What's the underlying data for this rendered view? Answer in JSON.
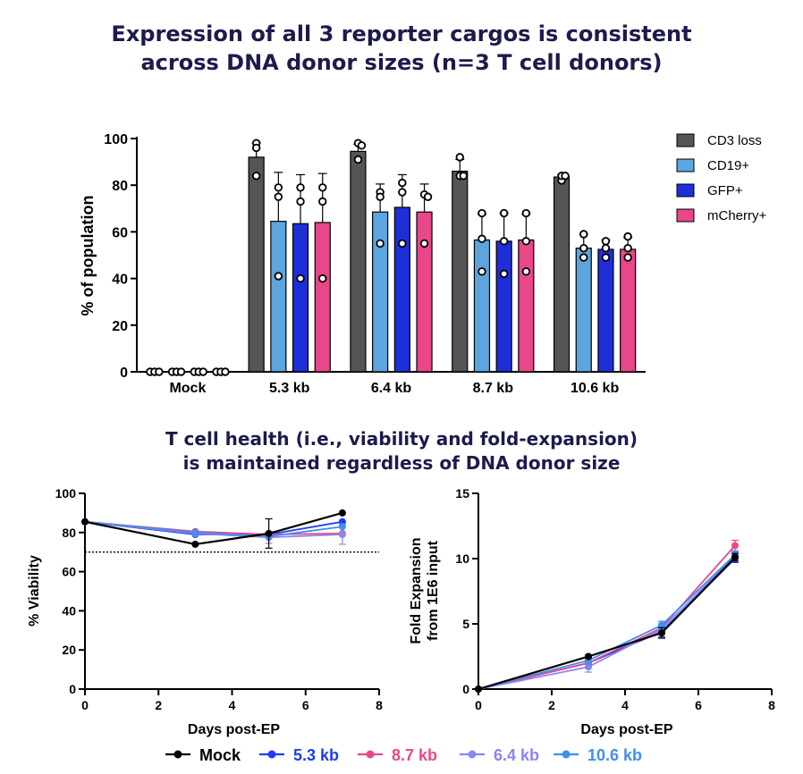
{
  "titles": {
    "top": [
      "Expression of all 3 reporter cargos is consistent",
      "across DNA donor sizes (n=3 T cell donors)"
    ],
    "bottom": [
      "T cell health (i.e., viability and fold-expansion)",
      "is maintained regardless of DNA donor size"
    ]
  },
  "chart_data": [
    {
      "type": "bar",
      "ylabel": "% of population",
      "ylim": [
        0,
        100
      ],
      "yticks": [
        0,
        20,
        40,
        60,
        80,
        100
      ],
      "categories": [
        "Mock",
        "5.3 kb",
        "6.4 kb",
        "8.7 kb",
        "10.6 kb"
      ],
      "legend_position": "right",
      "series": [
        {
          "name": "CD3 loss",
          "color": "#555555",
          "values": [
            0,
            92,
            94.5,
            86,
            83.5
          ],
          "error": [
            0,
            6,
            3,
            5,
            1
          ],
          "points": [
            [
              0,
              0,
              0
            ],
            [
              98,
              96,
              84
            ],
            [
              98,
              97,
              91
            ],
            [
              92,
              84,
              84
            ],
            [
              82,
              84,
              84
            ]
          ]
        },
        {
          "name": "CD19+",
          "color": "#5ca5df",
          "values": [
            0,
            64.5,
            68.5,
            56.5,
            53
          ],
          "error": [
            0,
            21,
            12,
            11,
            6
          ],
          "points": [
            [
              0,
              0,
              0
            ],
            [
              79,
              75,
              41
            ],
            [
              77,
              75,
              55
            ],
            [
              68,
              57,
              43
            ],
            [
              59,
              53,
              49
            ]
          ]
        },
        {
          "name": "GFP+",
          "color": "#1f2fd8",
          "values": [
            0,
            63.5,
            70.5,
            56,
            52.5
          ],
          "error": [
            0,
            21,
            14,
            12,
            4
          ],
          "points": [
            [
              0,
              0,
              0
            ],
            [
              79,
              73,
              40
            ],
            [
              81,
              77,
              55
            ],
            [
              68,
              56,
              42
            ],
            [
              56,
              53,
              49
            ]
          ]
        },
        {
          "name": "mCherry+",
          "color": "#e8478a",
          "values": [
            0,
            64,
            68.5,
            56.5,
            52.5
          ],
          "error": [
            0,
            21,
            12,
            11,
            5
          ],
          "points": [
            [
              0,
              0,
              0
            ],
            [
              79,
              73,
              40
            ],
            [
              76,
              75,
              55
            ],
            [
              68,
              56,
              43
            ],
            [
              58,
              53,
              49
            ]
          ]
        }
      ]
    },
    {
      "type": "line",
      "xlabel": "Days post-EP",
      "ylabel": "% Viability",
      "xlim": [
        0,
        8
      ],
      "ylim": [
        0,
        100
      ],
      "xticks": [
        0,
        2,
        4,
        6,
        8
      ],
      "yticks": [
        0,
        20,
        40,
        60,
        80,
        100
      ],
      "reference_line": 70,
      "x": [
        0,
        3,
        5,
        7
      ],
      "series": [
        {
          "name": "Mock",
          "color": "#000000",
          "values": [
            85.5,
            74,
            79.5,
            90
          ],
          "error": [
            0,
            0,
            7.5,
            0
          ]
        },
        {
          "name": "5.3 kb",
          "color": "#1f3cf0",
          "values": [
            85.5,
            79,
            79,
            85.5
          ],
          "error": [
            0,
            0,
            0,
            0
          ]
        },
        {
          "name": "8.7 kb",
          "color": "#e8478a",
          "values": [
            85.5,
            80.5,
            79,
            79.5
          ],
          "error": [
            0,
            0,
            0,
            0
          ]
        },
        {
          "name": "6.4 kb",
          "color": "#8a86f0",
          "values": [
            85.5,
            79.5,
            77.5,
            79
          ],
          "error": [
            0,
            0,
            3,
            5
          ]
        },
        {
          "name": "10.6 kb",
          "color": "#3f8fef",
          "values": [
            85.5,
            80,
            78,
            83
          ],
          "error": [
            0,
            0,
            0,
            0
          ]
        }
      ]
    },
    {
      "type": "line",
      "xlabel": "Days post-EP",
      "ylabel": "Fold Expansion from 1E6 input",
      "ylabel_lines": [
        "Fold Expansion",
        "from 1E6 input"
      ],
      "xlim": [
        0,
        8
      ],
      "ylim": [
        0,
        15
      ],
      "xticks": [
        0,
        2,
        4,
        6,
        8
      ],
      "yticks": [
        0,
        5,
        10,
        15
      ],
      "x": [
        0,
        3,
        5,
        7
      ],
      "series": [
        {
          "name": "Mock",
          "color": "#000000",
          "values": [
            0,
            2.5,
            4.3,
            10.1
          ],
          "error": [
            0,
            0.1,
            0.4,
            0.3
          ]
        },
        {
          "name": "5.3 kb",
          "color": "#1f3cf0",
          "values": [
            0,
            2.0,
            4.4,
            10.0
          ],
          "error": [
            0,
            0.3,
            0.4,
            0.3
          ]
        },
        {
          "name": "8.7 kb",
          "color": "#e8478a",
          "values": [
            0,
            2.0,
            4.7,
            11.0
          ],
          "error": [
            0,
            0.3,
            0.3,
            0.4
          ]
        },
        {
          "name": "6.4 kb",
          "color": "#8a86f0",
          "values": [
            0,
            1.7,
            4.6,
            10.2
          ],
          "error": [
            0,
            0.4,
            0.3,
            0.3
          ]
        },
        {
          "name": "10.6 kb",
          "color": "#3f8fef",
          "values": [
            0,
            2.2,
            4.9,
            10.3
          ],
          "error": [
            0,
            0.3,
            0.3,
            0.3
          ]
        }
      ]
    }
  ],
  "bottom_legend": [
    "Mock",
    "5.3 kb",
    "8.7 kb",
    "6.4 kb",
    "10.6 kb"
  ]
}
